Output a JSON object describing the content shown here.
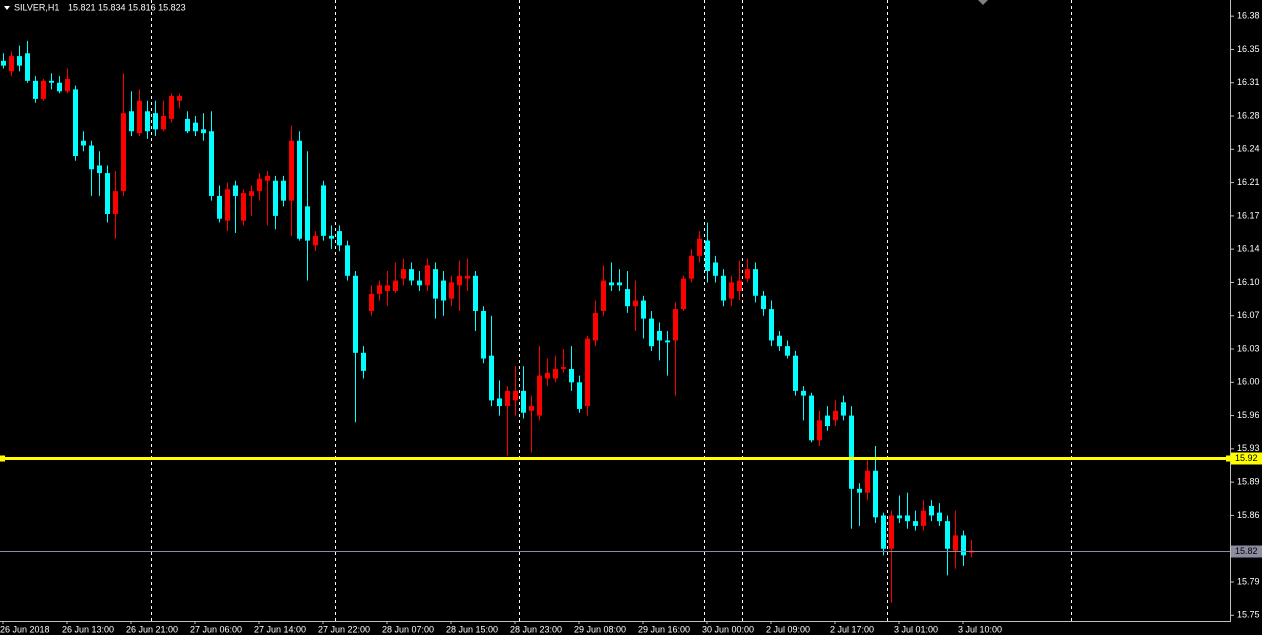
{
  "chart_data": {
    "type": "candlestick",
    "title": "SILVER,H1",
    "ohlc_text": "15.821 15.834 15.816 15.823",
    "categories": [
      "26 Jun 2018",
      null,
      null,
      null,
      null,
      null,
      null,
      null,
      "26 Jun 13:00",
      null,
      null,
      null,
      null,
      null,
      null,
      null,
      "26 Jun 21:00",
      null,
      null,
      null,
      null,
      null,
      null,
      null,
      "27 Jun 06:00",
      null,
      null,
      null,
      null,
      null,
      null,
      null,
      "27 Jun 14:00",
      null,
      null,
      null,
      null,
      null,
      null,
      null,
      "27 Jun 22:00",
      null,
      null,
      null,
      null,
      null,
      null,
      null,
      "28 Jun 07:00",
      null,
      null,
      null,
      null,
      null,
      null,
      null,
      "28 Jun 15:00",
      null,
      null,
      null,
      null,
      null,
      null,
      null,
      "28 Jun 23:00",
      null,
      null,
      null,
      null,
      null,
      null,
      null,
      "29 Jun 08:00",
      null,
      null,
      null,
      null,
      null,
      null,
      null,
      "29 Jun 16:00",
      null,
      null,
      null,
      null,
      null,
      null,
      null,
      "30 Jun 00:00",
      null,
      null,
      null,
      null,
      null,
      null,
      null,
      "2 Jul 09:00",
      null,
      null,
      null,
      null,
      null,
      null,
      null,
      "2 Jul 17:00",
      null,
      null,
      null,
      null,
      null,
      null,
      null,
      "3 Jul 01:00",
      null,
      null,
      null,
      null,
      null,
      null,
      null,
      "3 Jul 10:00",
      null
    ],
    "open": [
      16.338,
      16.327,
      16.343,
      16.346,
      16.317,
      16.298,
      16.317,
      16.315,
      16.306,
      16.308,
      16.254,
      16.249,
      16.228,
      16.22,
      16.177,
      16.201,
      16.285,
      16.262,
      16.285,
      16.283,
      16.266,
      16.277,
      16.296,
      16.277,
      16.273,
      16.266,
      16.264,
      16.196,
      16.17,
      16.207,
      16.17,
      16.196,
      16.201,
      16.212,
      16.212,
      16.212,
      16.191,
      16.254,
      16.185,
      16.144,
      16.207,
      16.154,
      16.159,
      16.144,
      16.112,
      16.031,
      16.075,
      16.093,
      16.096,
      16.096,
      16.109,
      16.119,
      16.107,
      16.102,
      16.119,
      16.107,
      16.088,
      16.102,
      16.109,
      16.112,
      16.075,
      16.028,
      15.983,
      15.975,
      15.981,
      15.991,
      15.97,
      15.965,
      16.004,
      16.004,
      16.014,
      16.014,
      16.0,
      15.975,
      16.044,
      16.075,
      16.105,
      16.105,
      16.098,
      16.08,
      16.086,
      16.067,
      16.054,
      16.044,
      16.044,
      16.077,
      16.109,
      16.133,
      16.149,
      16.126,
      16.112,
      16.088,
      16.096,
      16.109,
      16.119,
      16.091,
      16.077,
      16.049,
      16.038,
      16.028,
      15.991,
      15.986,
      15.939,
      15.965,
      15.96,
      15.979,
      15.965,
      15.888,
      15.884,
      15.907,
      15.86,
      15.825,
      15.86,
      15.86,
      15.854,
      15.849,
      15.87,
      15.863,
      15.854,
      15.823,
      15.839,
      15.821
    ],
    "high": [
      16.346,
      16.348,
      16.354,
      16.359,
      16.322,
      16.319,
      16.325,
      16.322,
      16.33,
      16.312,
      16.264,
      16.254,
      16.243,
      16.228,
      16.222,
      16.325,
      16.306,
      16.308,
      16.296,
      16.296,
      16.296,
      16.304,
      16.304,
      16.285,
      16.28,
      16.283,
      16.285,
      16.207,
      16.21,
      16.212,
      16.203,
      16.207,
      16.22,
      16.222,
      16.217,
      16.217,
      16.27,
      16.264,
      16.243,
      16.159,
      16.212,
      16.165,
      16.165,
      16.149,
      16.117,
      16.038,
      16.102,
      16.107,
      16.117,
      16.126,
      16.13,
      16.126,
      16.117,
      16.13,
      16.126,
      16.117,
      16.112,
      16.128,
      16.13,
      16.117,
      16.08,
      16.07,
      16.002,
      15.996,
      16.017,
      16.017,
      15.986,
      16.038,
      16.025,
      16.028,
      16.035,
      16.038,
      16.007,
      16.049,
      16.086,
      16.123,
      16.126,
      16.119,
      16.117,
      16.107,
      16.091,
      16.075,
      16.063,
      16.054,
      16.084,
      16.112,
      16.14,
      16.159,
      16.168,
      16.133,
      16.119,
      16.112,
      16.128,
      16.13,
      16.126,
      16.096,
      16.086,
      16.054,
      16.044,
      16.033,
      15.996,
      15.989,
      15.97,
      15.975,
      15.981,
      15.986,
      15.975,
      15.894,
      15.918,
      15.933,
      15.863,
      15.865,
      15.881,
      15.884,
      15.865,
      15.876,
      15.876,
      15.873,
      15.86,
      15.865,
      15.844,
      15.834
    ],
    "low": [
      16.33,
      16.322,
      16.327,
      16.315,
      16.294,
      16.296,
      16.308,
      16.304,
      16.304,
      16.233,
      16.243,
      16.196,
      16.196,
      16.168,
      16.151,
      16.196,
      16.259,
      16.259,
      16.256,
      16.259,
      16.264,
      16.273,
      16.288,
      16.262,
      16.259,
      16.254,
      16.191,
      16.168,
      16.159,
      16.157,
      16.165,
      16.175,
      16.191,
      16.165,
      16.161,
      16.185,
      16.154,
      16.149,
      16.107,
      16.138,
      16.149,
      16.14,
      16.138,
      16.107,
      15.958,
      16.004,
      16.07,
      16.086,
      16.08,
      16.094,
      16.102,
      16.102,
      16.096,
      16.096,
      16.067,
      16.07,
      16.08,
      16.075,
      16.096,
      16.054,
      16.02,
      15.975,
      15.965,
      15.923,
      15.965,
      15.962,
      15.926,
      15.96,
      15.996,
      16.0,
      16.01,
      15.991,
      15.968,
      15.965,
      16.038,
      16.07,
      16.096,
      16.096,
      16.073,
      16.054,
      16.046,
      16.033,
      16.023,
      16.007,
      15.986,
      16.075,
      16.105,
      16.126,
      16.105,
      16.105,
      16.08,
      16.08,
      16.086,
      16.105,
      16.084,
      16.07,
      16.038,
      16.033,
      16.025,
      15.986,
      15.96,
      15.937,
      15.933,
      15.949,
      15.954,
      15.96,
      15.846,
      15.849,
      15.876,
      15.852,
      15.818,
      15.768,
      15.852,
      15.846,
      15.844,
      15.844,
      15.854,
      15.849,
      15.797,
      15.804,
      15.807,
      15.816
    ],
    "close": [
      16.333,
      16.343,
      16.333,
      16.317,
      16.298,
      16.317,
      16.315,
      16.306,
      16.319,
      16.238,
      16.249,
      16.224,
      16.22,
      16.177,
      16.201,
      16.283,
      16.264,
      16.296,
      16.264,
      16.266,
      16.28,
      16.301,
      16.301,
      16.264,
      16.264,
      16.262,
      16.196,
      16.172,
      16.203,
      16.196,
      16.199,
      16.201,
      16.214,
      16.217,
      16.175,
      16.191,
      16.254,
      16.151,
      16.149,
      16.154,
      16.154,
      16.151,
      16.144,
      16.112,
      16.031,
      16.012,
      16.093,
      16.102,
      16.102,
      16.107,
      16.119,
      16.107,
      16.102,
      16.123,
      16.088,
      16.086,
      16.105,
      16.112,
      16.112,
      16.075,
      16.025,
      15.981,
      15.975,
      15.991,
      15.991,
      15.968,
      15.975,
      16.007,
      16.01,
      16.014,
      16.016,
      16.0,
      15.972,
      16.046,
      16.073,
      16.107,
      16.102,
      16.102,
      16.08,
      16.086,
      16.067,
      16.038,
      16.044,
      16.042,
      16.077,
      16.109,
      16.133,
      16.151,
      16.117,
      16.112,
      16.086,
      16.105,
      16.107,
      16.119,
      16.091,
      16.077,
      16.044,
      16.038,
      16.028,
      15.991,
      15.986,
      15.939,
      15.96,
      15.954,
      15.97,
      15.965,
      15.888,
      15.884,
      15.907,
      15.858,
      15.825,
      15.86,
      15.857,
      15.854,
      15.849,
      15.865,
      15.86,
      15.854,
      15.825,
      15.839,
      15.818,
      15.823
    ],
    "up_color": "#ff0000",
    "down_color": "#00ffff",
    "ylim": [
      15.749,
      16.402
    ],
    "yticks": [
      {
        "value": 15.755,
        "label": "15.75"
      },
      {
        "value": 15.79,
        "label": "15.79"
      },
      {
        "value": 15.86,
        "label": "15.86"
      },
      {
        "value": 15.895,
        "label": "15.89"
      },
      {
        "value": 15.93,
        "label": "15.93"
      },
      {
        "value": 15.965,
        "label": "15.96"
      },
      {
        "value": 16.0,
        "label": "16.00"
      },
      {
        "value": 16.035,
        "label": "16.03"
      },
      {
        "value": 16.07,
        "label": "16.07"
      },
      {
        "value": 16.105,
        "label": "16.10"
      },
      {
        "value": 16.14,
        "label": "16.14"
      },
      {
        "value": 16.175,
        "label": "16.17"
      },
      {
        "value": 16.21,
        "label": "16.21"
      },
      {
        "value": 16.245,
        "label": "16.24"
      },
      {
        "value": 16.28,
        "label": "16.28"
      },
      {
        "value": 16.315,
        "label": "16.31"
      },
      {
        "value": 16.35,
        "label": "16.35"
      },
      {
        "value": 16.385,
        "label": "16.38"
      }
    ],
    "hlines": [
      {
        "value": 15.92,
        "label": "15.92",
        "color": "#ffff00"
      },
      {
        "value": 15.823,
        "label": "15.82",
        "color": "#8c8ca0"
      }
    ]
  }
}
